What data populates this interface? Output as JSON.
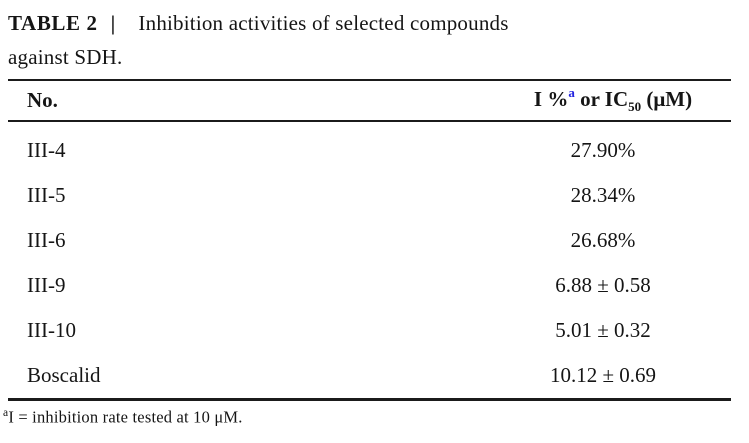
{
  "caption": {
    "label": "TABLE 2",
    "separator": "|",
    "line1": "Inhibition activities of selected compounds",
    "line2": "against SDH."
  },
  "table": {
    "col1_header": "No.",
    "col2_header": {
      "pre": "I %",
      "sup": "a",
      "mid": " or IC",
      "sub": "50",
      "post": " (μM)"
    },
    "rows": [
      {
        "no": "III-4",
        "value": "27.90%"
      },
      {
        "no": "III-5",
        "value": "28.34%"
      },
      {
        "no": "III-6",
        "value": "26.68%"
      },
      {
        "no": "III-9",
        "value": "6.88 ± 0.58"
      },
      {
        "no": "III-10",
        "value": "5.01 ± 0.32"
      },
      {
        "no": "Boscalid",
        "value": "10.12 ± 0.69"
      }
    ]
  },
  "footnote": {
    "sup": "a",
    "text": "I = inhibition rate tested at 10 μM."
  },
  "colors": {
    "superscript_accent": "#2323e0",
    "text": "#151515",
    "rule": "#1b1b1b",
    "background": "#ffffff"
  },
  "chart_data": {
    "type": "table",
    "title": "TABLE 2 | Inhibition activities of selected compounds against SDH.",
    "columns": [
      "No.",
      "I %a or IC50 (μM)"
    ],
    "rows": [
      [
        "III-4",
        "27.90%"
      ],
      [
        "III-5",
        "28.34%"
      ],
      [
        "III-6",
        "26.68%"
      ],
      [
        "III-9",
        "6.88 ± 0.58"
      ],
      [
        "III-10",
        "5.01 ± 0.32"
      ],
      [
        "Boscalid",
        "10.12 ± 0.69"
      ]
    ],
    "footnote": "a I = inhibition rate tested at 10 μM."
  }
}
